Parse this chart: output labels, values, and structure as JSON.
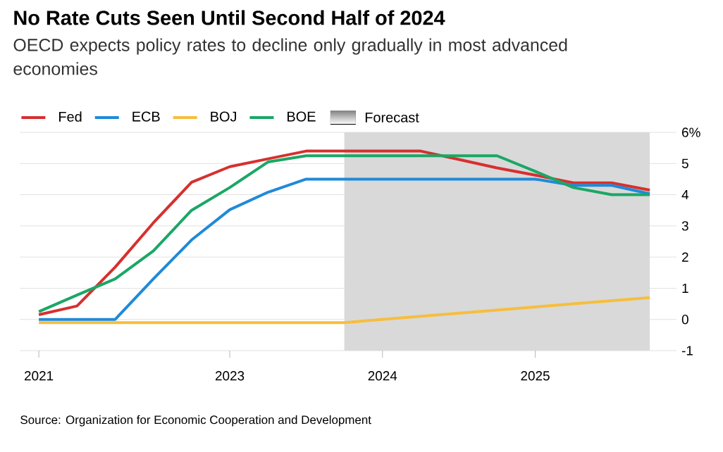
{
  "chart_data": {
    "type": "line",
    "title": "No Rate Cuts Seen Until Second Half of 2024",
    "subtitle": "OECD expects policy rates to decline only gradually in most advanced economies",
    "categories": [
      "2021",
      null,
      null,
      null,
      null,
      "2023",
      null,
      null,
      null,
      "2024",
      null,
      null,
      null,
      "2025",
      null,
      null,
      null
    ],
    "series": [
      {
        "name": "Fed",
        "color": "#d6302f",
        "values": [
          0.15,
          0.43,
          1.68,
          3.1,
          4.4,
          4.9,
          5.15,
          5.4,
          5.4,
          5.4,
          5.4,
          5.13,
          4.86,
          4.63,
          4.38,
          4.38,
          4.15
        ]
      },
      {
        "name": "ECB",
        "color": "#1f8ad8",
        "values": [
          0,
          0,
          0,
          1.3,
          2.55,
          3.52,
          4.08,
          4.5,
          4.5,
          4.5,
          4.5,
          4.5,
          4.5,
          4.5,
          4.3,
          4.3,
          4.03
        ]
      },
      {
        "name": "BOJ",
        "color": "#f6be3c",
        "values": [
          -0.1,
          -0.1,
          -0.1,
          -0.1,
          -0.1,
          -0.1,
          -0.1,
          -0.1,
          -0.1,
          0,
          0.1,
          0.2,
          0.3,
          0.4,
          0.5,
          0.6,
          0.7
        ]
      },
      {
        "name": "BOE",
        "color": "#1aa765",
        "values": [
          0.25,
          0.78,
          1.3,
          2.2,
          3.5,
          4.23,
          5.05,
          5.25,
          5.25,
          5.25,
          5.25,
          5.25,
          5.25,
          4.75,
          4.23,
          4.0,
          4.0
        ]
      }
    ],
    "ylim": [
      -1,
      6
    ],
    "yticks": [
      -1,
      0,
      1,
      2,
      3,
      4,
      5,
      {
        "value": 6,
        "label": "6%"
      }
    ],
    "grid": "y",
    "legend": "top left",
    "annotations": [
      "Source: Organization for Economic Cooperation and Development",
      "Forecast"
    ]
  }
}
